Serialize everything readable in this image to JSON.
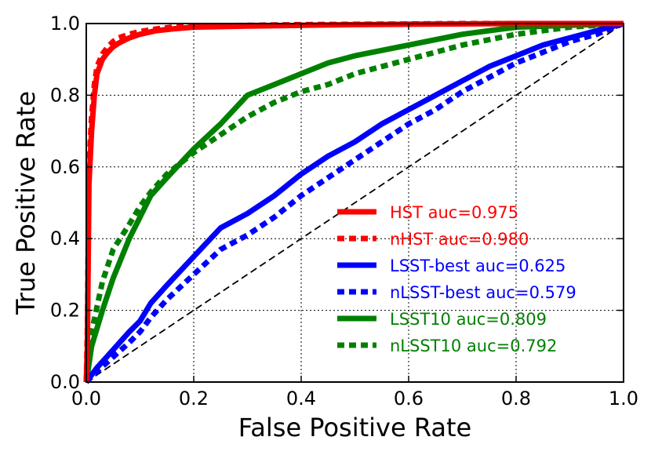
{
  "chart_data": {
    "type": "line",
    "title": "",
    "xlabel": "False Positive Rate",
    "ylabel": "True Positive Rate",
    "xlim": [
      0.0,
      1.0
    ],
    "ylim": [
      0.0,
      1.0
    ],
    "xticks": [
      "0.0",
      "0.2",
      "0.4",
      "0.6",
      "0.8",
      "1.0"
    ],
    "yticks": [
      "0.0",
      "0.2",
      "0.4",
      "0.6",
      "0.8",
      "1.0"
    ],
    "grid": true,
    "legend_position": "lower-right",
    "reference_line": {
      "x": [
        0.0,
        1.0
      ],
      "y": [
        0.0,
        1.0
      ],
      "style": "dashed",
      "color": "#000000"
    },
    "series": [
      {
        "name": "HST auc=0.975",
        "color": "#ff0000",
        "style": "solid",
        "x": [
          0.0,
          0.002,
          0.005,
          0.01,
          0.015,
          0.02,
          0.03,
          0.04,
          0.05,
          0.06,
          0.08,
          0.1,
          0.13,
          0.16,
          0.2,
          0.3,
          0.4,
          0.5,
          0.6,
          0.7,
          0.8,
          0.9,
          1.0
        ],
        "y": [
          0.0,
          0.1,
          0.55,
          0.7,
          0.8,
          0.86,
          0.9,
          0.92,
          0.935,
          0.945,
          0.96,
          0.97,
          0.98,
          0.985,
          0.99,
          0.993,
          0.995,
          0.997,
          0.998,
          0.999,
          1.0,
          1.0,
          1.0
        ]
      },
      {
        "name": "nHST auc=0.980",
        "color": "#ff0000",
        "style": "dotted",
        "x": [
          0.0,
          0.002,
          0.005,
          0.01,
          0.015,
          0.02,
          0.03,
          0.04,
          0.05,
          0.06,
          0.08,
          0.1,
          0.13,
          0.16,
          0.2,
          0.3,
          0.4,
          0.5,
          0.6,
          0.7,
          0.8,
          0.9,
          1.0
        ],
        "y": [
          0.0,
          0.15,
          0.6,
          0.74,
          0.83,
          0.88,
          0.915,
          0.935,
          0.95,
          0.96,
          0.97,
          0.978,
          0.985,
          0.99,
          0.993,
          0.995,
          0.997,
          0.998,
          0.999,
          1.0,
          1.0,
          1.0,
          1.0
        ]
      },
      {
        "name": "LSST-best auc=0.625",
        "color": "#0000ff",
        "style": "solid",
        "x": [
          0.0,
          0.02,
          0.05,
          0.08,
          0.1,
          0.12,
          0.15,
          0.2,
          0.25,
          0.3,
          0.35,
          0.4,
          0.45,
          0.5,
          0.55,
          0.6,
          0.65,
          0.7,
          0.75,
          0.8,
          0.85,
          0.9,
          0.95,
          1.0
        ],
        "y": [
          0.0,
          0.04,
          0.09,
          0.14,
          0.17,
          0.22,
          0.27,
          0.35,
          0.43,
          0.47,
          0.52,
          0.58,
          0.63,
          0.67,
          0.72,
          0.76,
          0.8,
          0.84,
          0.88,
          0.91,
          0.94,
          0.96,
          0.98,
          1.0
        ]
      },
      {
        "name": "nLSST-best auc=0.579",
        "color": "#0000ff",
        "style": "dotted",
        "x": [
          0.0,
          0.02,
          0.05,
          0.08,
          0.1,
          0.12,
          0.15,
          0.2,
          0.25,
          0.3,
          0.35,
          0.4,
          0.45,
          0.5,
          0.55,
          0.6,
          0.65,
          0.7,
          0.75,
          0.8,
          0.85,
          0.9,
          0.95,
          1.0
        ],
        "y": [
          0.0,
          0.03,
          0.07,
          0.11,
          0.14,
          0.18,
          0.23,
          0.3,
          0.37,
          0.41,
          0.46,
          0.52,
          0.57,
          0.62,
          0.67,
          0.72,
          0.76,
          0.81,
          0.85,
          0.89,
          0.92,
          0.95,
          0.97,
          1.0
        ]
      },
      {
        "name": "LSST10 auc=0.809",
        "color": "#008000",
        "style": "solid",
        "x": [
          0.0,
          0.01,
          0.03,
          0.05,
          0.08,
          0.1,
          0.12,
          0.15,
          0.2,
          0.25,
          0.3,
          0.35,
          0.4,
          0.45,
          0.5,
          0.6,
          0.7,
          0.8,
          0.9,
          1.0
        ],
        "y": [
          0.0,
          0.1,
          0.2,
          0.29,
          0.4,
          0.46,
          0.52,
          0.57,
          0.65,
          0.72,
          0.8,
          0.83,
          0.86,
          0.89,
          0.91,
          0.94,
          0.97,
          0.99,
          0.995,
          1.0
        ]
      },
      {
        "name": "nLSST10 auc=0.792",
        "color": "#008000",
        "style": "dotted",
        "x": [
          0.0,
          0.01,
          0.03,
          0.05,
          0.08,
          0.1,
          0.12,
          0.15,
          0.2,
          0.25,
          0.3,
          0.35,
          0.4,
          0.45,
          0.5,
          0.6,
          0.7,
          0.8,
          0.9,
          1.0
        ],
        "y": [
          0.0,
          0.14,
          0.28,
          0.37,
          0.44,
          0.49,
          0.53,
          0.58,
          0.64,
          0.69,
          0.74,
          0.78,
          0.81,
          0.83,
          0.86,
          0.9,
          0.94,
          0.97,
          0.99,
          1.0
        ]
      }
    ]
  }
}
